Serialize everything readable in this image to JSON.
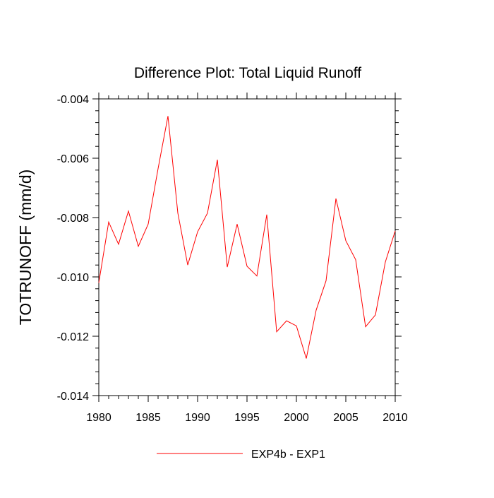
{
  "chart_data": {
    "type": "line",
    "title": "Difference Plot: Total Liquid Runoff",
    "xlabel": "",
    "ylabel": "TOTRUNOFF  (mm/d)",
    "xlim": [
      1980,
      2010
    ],
    "ylim": [
      -0.014,
      -0.004
    ],
    "x_ticks": [
      1980,
      1985,
      1990,
      1995,
      2000,
      2005,
      2010
    ],
    "x_tick_labels": [
      "1980",
      "1985",
      "1990",
      "1995",
      "2000",
      "2005",
      "2010"
    ],
    "y_ticks": [
      -0.014,
      -0.012,
      -0.01,
      -0.008,
      -0.006,
      -0.004
    ],
    "y_tick_labels": [
      "-0.014",
      "-0.012",
      "-0.010",
      "-0.008",
      "-0.006",
      "-0.004"
    ],
    "grid": false,
    "legend_position": "bottom-center",
    "series": [
      {
        "name": "EXP4b - EXP1",
        "color": "#ff0000",
        "x": [
          1980,
          1981,
          1982,
          1983,
          1984,
          1985,
          1986,
          1987,
          1988,
          1989,
          1990,
          1991,
          1992,
          1993,
          1994,
          1995,
          1996,
          1997,
          1998,
          1999,
          2000,
          2001,
          2002,
          2003,
          2004,
          2005,
          2006,
          2007,
          2008,
          2009,
          2010
        ],
        "values": [
          -0.0102,
          -0.00815,
          -0.0089,
          -0.00778,
          -0.00897,
          -0.00822,
          -0.00635,
          -0.00458,
          -0.00785,
          -0.0096,
          -0.00848,
          -0.00785,
          -0.00605,
          -0.00967,
          -0.00822,
          -0.00964,
          -0.00997,
          -0.0079,
          -0.01185,
          -0.01148,
          -0.01165,
          -0.01275,
          -0.01112,
          -0.01013,
          -0.00736,
          -0.00878,
          -0.00942,
          -0.01168,
          -0.01128,
          -0.0095,
          -0.00845
        ]
      }
    ]
  }
}
